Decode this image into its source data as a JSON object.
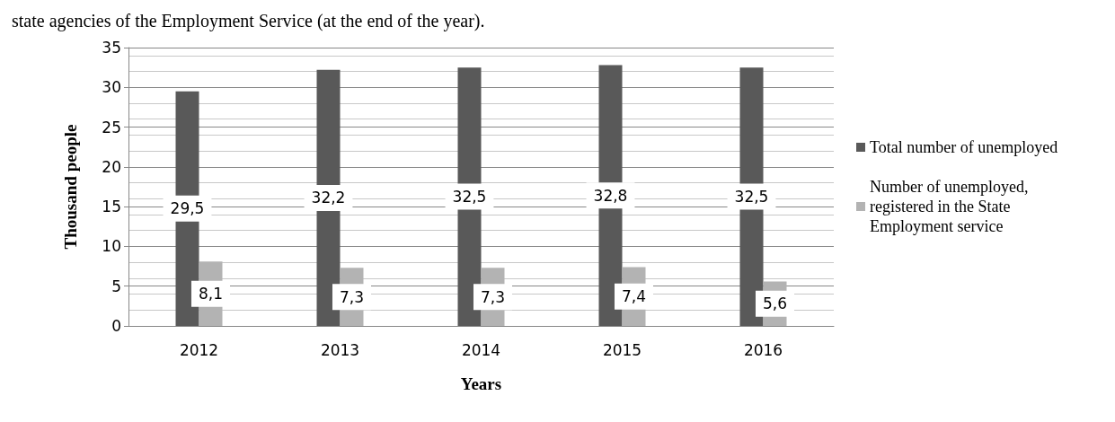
{
  "chart_data": {
    "type": "bar",
    "title": "state agencies of the Employment Service (at the end of the year).",
    "xlabel": "Years",
    "ylabel": "Thousand people",
    "categories": [
      "2012",
      "2013",
      "2014",
      "2015",
      "2016"
    ],
    "series": [
      {
        "name": "Total number of unemployed",
        "color": "#595959",
        "values": [
          29.5,
          32.2,
          32.5,
          32.8,
          32.5
        ],
        "value_labels": [
          "29,5",
          "32,2",
          "32,5",
          "32,8",
          "32,5"
        ]
      },
      {
        "name": "Number of unemployed,\nregistered in the State\nEmployment service",
        "color": "#b3b3b3",
        "values": [
          8.1,
          7.3,
          7.3,
          7.4,
          5.6
        ],
        "value_labels": [
          "8,1",
          "7,3",
          "7,3",
          "7,4",
          "5,6"
        ]
      }
    ],
    "ylim": [
      0,
      35
    ],
    "yticks": [
      0,
      5,
      10,
      15,
      20,
      25,
      30,
      35
    ],
    "grid": "y",
    "legend": "right"
  }
}
